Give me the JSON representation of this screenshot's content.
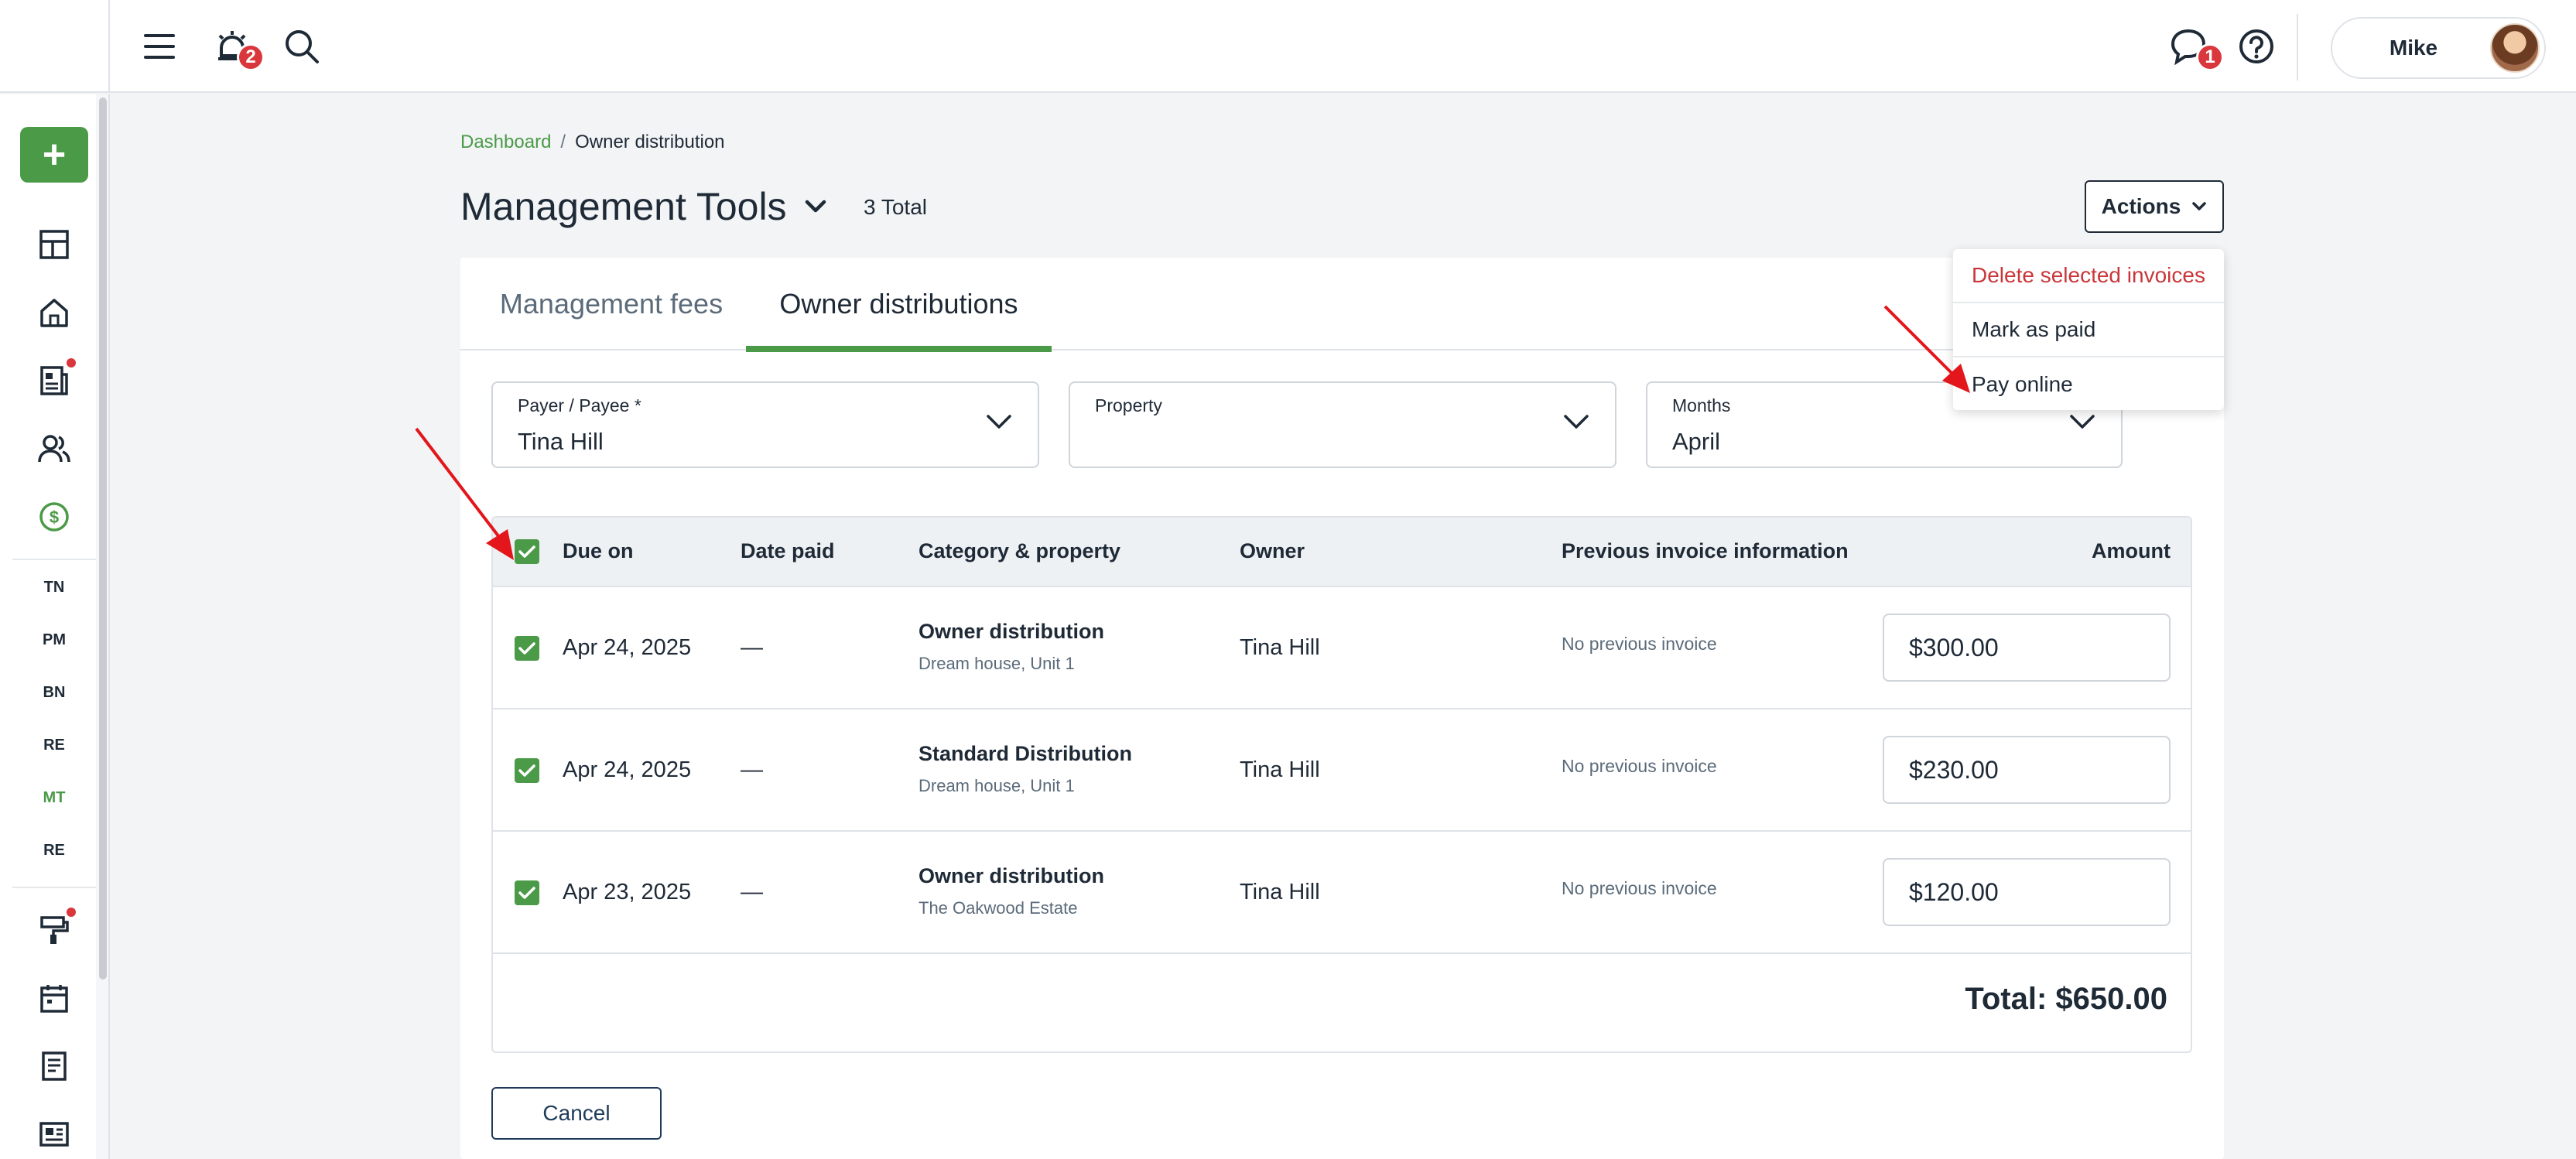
{
  "topbar": {
    "notifications_count": "2",
    "messages_count": "1",
    "user_name": "Mike"
  },
  "sidebar": {
    "text_items": [
      "TN",
      "PM",
      "BN",
      "RE",
      "MT",
      "RE"
    ],
    "active_text_item": "MT"
  },
  "breadcrumb": {
    "link": "Dashboard",
    "separator": "/",
    "current": "Owner distribution"
  },
  "header": {
    "title": "Management Tools",
    "total": "3 Total",
    "actions_label": "Actions"
  },
  "tabs": [
    {
      "label": "Management fees",
      "active": false
    },
    {
      "label": "Owner distributions",
      "active": true
    }
  ],
  "filters": {
    "payer": {
      "label": "Payer / Payee *",
      "value": "Tina Hill"
    },
    "property": {
      "label": "Property",
      "value": ""
    },
    "months": {
      "label": "Months",
      "value": "April"
    }
  },
  "table": {
    "columns": [
      "Due on",
      "Date paid",
      "Category & property",
      "Owner",
      "Previous invoice information",
      "Amount"
    ],
    "rows": [
      {
        "due_on": "Apr 24, 2025",
        "date_paid": "—",
        "category": "Owner distribution",
        "property": "Dream house, Unit 1",
        "owner": "Tina Hill",
        "previous": "No previous invoice",
        "amount": "$300.00",
        "checked": true
      },
      {
        "due_on": "Apr 24, 2025",
        "date_paid": "—",
        "category": "Standard Distribution",
        "property": "Dream house, Unit 1",
        "owner": "Tina Hill",
        "previous": "No previous invoice",
        "amount": "$230.00",
        "checked": true
      },
      {
        "due_on": "Apr 23, 2025",
        "date_paid": "—",
        "category": "Owner distribution",
        "property": "The Oakwood Estate",
        "owner": "Tina Hill",
        "previous": "No previous invoice",
        "amount": "$120.00",
        "checked": true
      }
    ],
    "total": "Total: $650.00"
  },
  "actions_menu": [
    {
      "label": "Delete selected invoices",
      "danger": true
    },
    {
      "label": "Mark as paid",
      "danger": false
    },
    {
      "label": "Pay online",
      "danger": false
    }
  ],
  "cancel_label": "Cancel",
  "colors": {
    "accent": "#4b9a47",
    "danger": "#d9373b",
    "annotation_arrow": "#e3161b"
  }
}
